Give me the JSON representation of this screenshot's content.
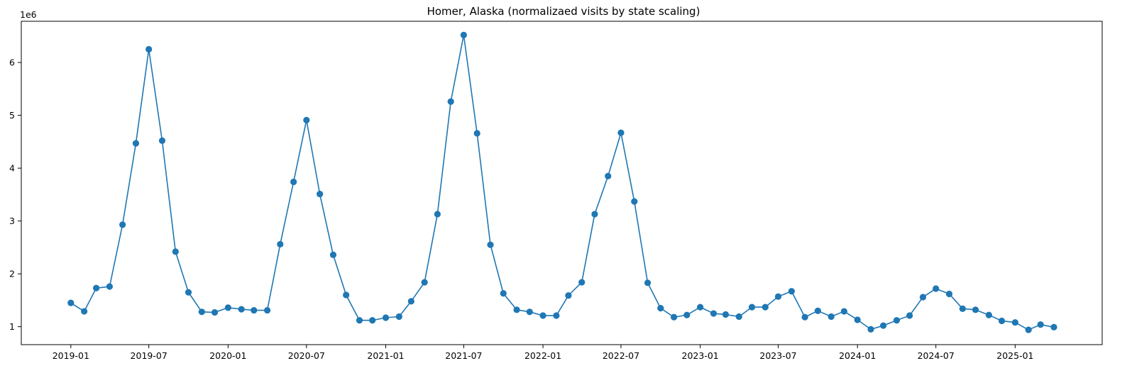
{
  "chart_data": {
    "type": "line",
    "title": "Homer, Alaska (normalizaed visits by state scaling)",
    "xlabel": "",
    "ylabel": "",
    "y_offset_label": "1e6",
    "y_multiplier": 1000000,
    "xlim": [
      "2018-09-08",
      "2025-07-22"
    ],
    "ylim": [
      0.66,
      6.78
    ],
    "y_ticks": [
      1,
      2,
      3,
      4,
      5,
      6
    ],
    "x_ticks": [
      "2019-01",
      "2019-07",
      "2020-01",
      "2020-07",
      "2021-01",
      "2021-07",
      "2022-01",
      "2022-07",
      "2023-01",
      "2023-07",
      "2024-01",
      "2024-07",
      "2025-01"
    ],
    "grid": false,
    "marker": "circle",
    "color": "#1f77b4",
    "series": [
      {
        "name": "",
        "x": [
          "2019-01",
          "2019-02",
          "2019-03",
          "2019-04",
          "2019-05",
          "2019-06",
          "2019-07",
          "2019-08",
          "2019-09",
          "2019-10",
          "2019-11",
          "2019-12",
          "2020-01",
          "2020-02",
          "2020-03",
          "2020-04",
          "2020-05",
          "2020-06",
          "2020-07",
          "2020-08",
          "2020-09",
          "2020-10",
          "2020-11",
          "2020-12",
          "2021-01",
          "2021-02",
          "2021-03",
          "2021-04",
          "2021-05",
          "2021-06",
          "2021-07",
          "2021-08",
          "2021-09",
          "2021-10",
          "2021-11",
          "2021-12",
          "2022-01",
          "2022-02",
          "2022-03",
          "2022-04",
          "2022-05",
          "2022-06",
          "2022-07",
          "2022-08",
          "2022-09",
          "2022-10",
          "2022-11",
          "2022-12",
          "2023-01",
          "2023-02",
          "2023-03",
          "2023-04",
          "2023-05",
          "2023-06",
          "2023-07",
          "2023-08",
          "2023-09",
          "2023-10",
          "2023-11",
          "2023-12",
          "2024-01",
          "2024-02",
          "2024-03",
          "2024-04",
          "2024-05",
          "2024-06",
          "2024-07",
          "2024-08",
          "2024-09",
          "2024-10",
          "2024-11",
          "2024-12",
          "2025-01",
          "2025-02",
          "2025-03",
          "2025-04"
        ],
        "y": [
          1.45,
          1.29,
          1.73,
          1.76,
          2.93,
          4.47,
          6.25,
          4.52,
          2.42,
          1.65,
          1.28,
          1.27,
          1.36,
          1.33,
          1.31,
          1.31,
          2.56,
          3.74,
          4.91,
          3.51,
          2.36,
          1.6,
          1.12,
          1.12,
          1.17,
          1.19,
          1.48,
          1.84,
          3.13,
          5.26,
          6.52,
          4.66,
          2.55,
          1.63,
          1.32,
          1.28,
          1.21,
          1.21,
          1.59,
          1.84,
          3.13,
          3.85,
          4.67,
          3.37,
          1.83,
          1.35,
          1.18,
          1.22,
          1.37,
          1.25,
          1.23,
          1.19,
          1.37,
          1.37,
          1.57,
          1.67,
          1.18,
          1.3,
          1.19,
          1.29,
          1.13,
          0.95,
          1.02,
          1.12,
          1.21,
          1.56,
          1.72,
          1.62,
          1.34,
          1.32,
          1.22,
          1.11,
          1.08,
          0.94,
          1.04,
          0.99
        ]
      }
    ]
  }
}
